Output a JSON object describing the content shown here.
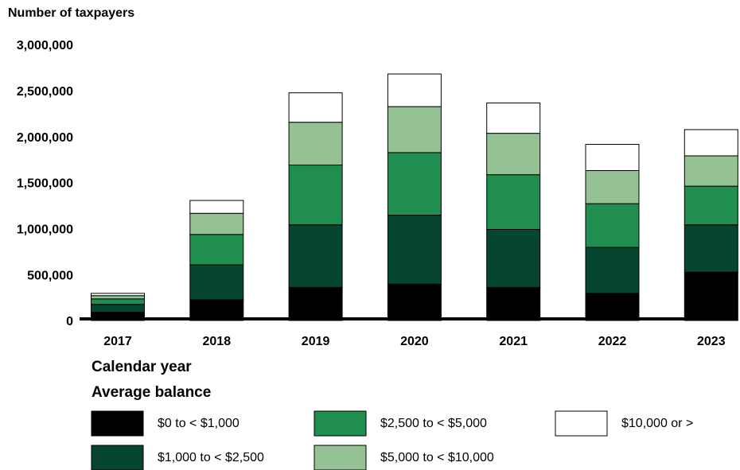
{
  "chart_data": {
    "type": "stacked_bar",
    "y_label": "Number of taxpayers",
    "x_label": "Calendar year",
    "legend_title": "Average balance",
    "categories": [
      "2017",
      "2018",
      "2019",
      "2020",
      "2021",
      "2022",
      "2023"
    ],
    "series": [
      {
        "name": "$0 to < $1,000",
        "color": "#000000",
        "values": [
          90000,
          225000,
          360000,
          395000,
          360000,
          295000,
          525000
        ]
      },
      {
        "name": "$1,000 to < $2,500",
        "color": "#064530",
        "values": [
          85000,
          380000,
          680000,
          750000,
          630000,
          500000,
          515000
        ]
      },
      {
        "name": "$2,500 to < $5,000",
        "color": "#1f8e4f",
        "values": [
          60000,
          330000,
          650000,
          680000,
          595000,
          475000,
          420000
        ]
      },
      {
        "name": "$5,000 to < $10,000",
        "color": "#95c295",
        "values": [
          35000,
          230000,
          465000,
          500000,
          450000,
          360000,
          330000
        ]
      },
      {
        "name": "$10,000 or >",
        "color": "#ffffff",
        "values": [
          25000,
          140000,
          320000,
          355000,
          330000,
          285000,
          285000
        ]
      }
    ],
    "ylim": [
      0,
      3000000
    ],
    "yticks": [
      0,
      {
        "value": 500000,
        "label": "500,000"
      },
      {
        "value": 1000000,
        "label": "1,000,000"
      },
      {
        "value": 1500000,
        "label": "1,500,000"
      },
      {
        "value": 2000000,
        "label": "2,000,000"
      },
      {
        "value": 2500000,
        "label": "2,500,000"
      },
      {
        "value": 3000000,
        "label": "3,000,000"
      }
    ],
    "grid": false
  }
}
